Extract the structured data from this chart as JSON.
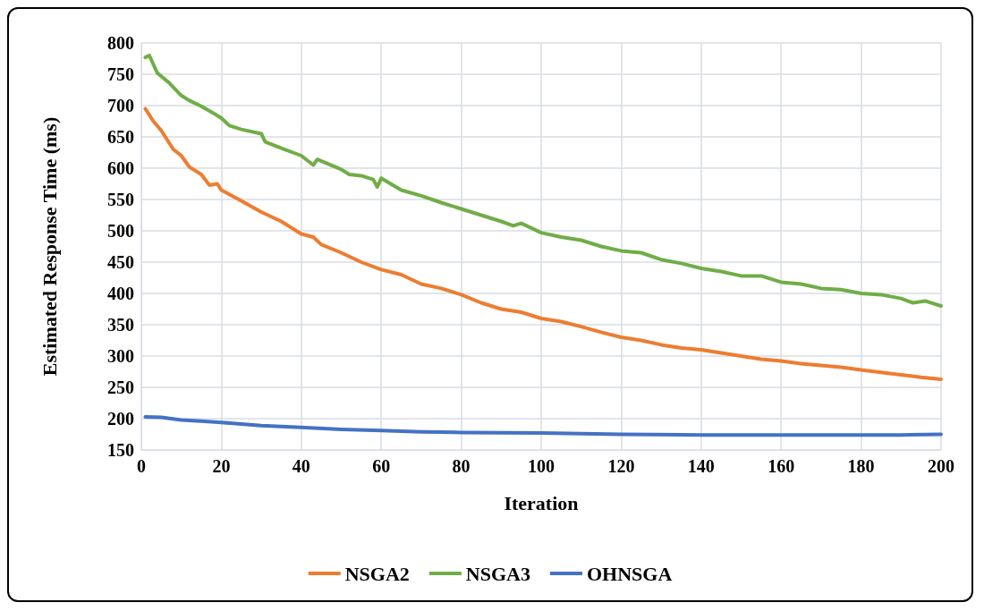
{
  "chart_data": {
    "type": "line",
    "xlabel": "Iteration",
    "ylabel": "Estimated Response Time (ms)",
    "xlim": [
      0,
      200
    ],
    "xticks": [
      0,
      20,
      40,
      60,
      80,
      100,
      120,
      140,
      160,
      180,
      200
    ],
    "ylim": [
      150,
      800
    ],
    "yticks": [
      150,
      200,
      250,
      300,
      350,
      400,
      450,
      500,
      550,
      600,
      650,
      700,
      750,
      800
    ],
    "grid": true,
    "legend": "bottom",
    "marker": "none",
    "line_style": "solid",
    "series": [
      {
        "name": "NSGA2",
        "color": "#ed7d31",
        "x": [
          1,
          3,
          5,
          8,
          10,
          12,
          15,
          17,
          19,
          20,
          25,
          30,
          35,
          40,
          43,
          45,
          50,
          55,
          60,
          65,
          70,
          75,
          80,
          85,
          90,
          95,
          100,
          105,
          110,
          115,
          120,
          125,
          130,
          135,
          140,
          145,
          150,
          155,
          160,
          165,
          170,
          175,
          180,
          185,
          190,
          195,
          200
        ],
        "values": [
          695,
          675,
          660,
          630,
          620,
          602,
          590,
          573,
          575,
          565,
          548,
          530,
          515,
          495,
          490,
          478,
          465,
          450,
          438,
          430,
          415,
          408,
          398,
          385,
          375,
          370,
          360,
          355,
          347,
          338,
          330,
          325,
          318,
          313,
          310,
          305,
          300,
          295,
          292,
          288,
          285,
          282,
          278,
          274,
          270,
          266,
          263
        ]
      },
      {
        "name": "NSGA3",
        "color": "#70ad47",
        "x": [
          1,
          2,
          4,
          7,
          10,
          12,
          15,
          18,
          20,
          22,
          25,
          30,
          31,
          35,
          40,
          43,
          44,
          50,
          52,
          55,
          58,
          59,
          60,
          65,
          70,
          75,
          80,
          85,
          90,
          93,
          95,
          100,
          105,
          110,
          115,
          120,
          125,
          130,
          135,
          140,
          145,
          150,
          155,
          160,
          165,
          170,
          175,
          180,
          185,
          190,
          193,
          196,
          200
        ],
        "values": [
          777,
          780,
          752,
          736,
          716,
          708,
          699,
          688,
          680,
          668,
          662,
          655,
          642,
          632,
          620,
          605,
          614,
          598,
          590,
          588,
          582,
          570,
          584,
          565,
          556,
          545,
          535,
          525,
          515,
          508,
          512,
          497,
          490,
          485,
          475,
          468,
          465,
          454,
          448,
          440,
          435,
          428,
          428,
          418,
          415,
          408,
          406,
          400,
          398,
          392,
          385,
          388,
          380
        ]
      },
      {
        "name": "OHNSGA",
        "color": "#4472c4",
        "x": [
          1,
          5,
          10,
          15,
          20,
          30,
          40,
          50,
          60,
          70,
          80,
          100,
          120,
          140,
          160,
          180,
          190,
          200
        ],
        "values": [
          203,
          202,
          198,
          196,
          194,
          189,
          186,
          183,
          181,
          179,
          178,
          177,
          175,
          174,
          174,
          174,
          174,
          175
        ]
      }
    ]
  }
}
